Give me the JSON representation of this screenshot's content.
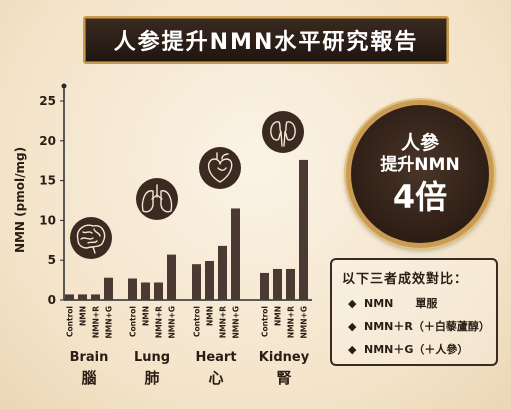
{
  "title": "人参提升NMN水平研究報告",
  "badge": {
    "line1": "人參",
    "line2": "提升NMN",
    "line3": "4倍"
  },
  "legend": {
    "title": "以下三者成效對比：",
    "items": [
      {
        "bullet": "◆",
        "text": "NMN　　單服"
      },
      {
        "bullet": "◆",
        "text": "NMN＋R（＋白藜蘆醇）"
      },
      {
        "bullet": "◆",
        "text": "NMN＋G（＋人參）"
      }
    ]
  },
  "colors": {
    "bar": "#4b3a33",
    "axis": "#2a2a2a",
    "banner": "#2b1c14",
    "gold": "#c99b54"
  },
  "chart_data": {
    "type": "bar",
    "ylabel": "NMN (pmol/mg)",
    "ylim": [
      0,
      27
    ],
    "yticks": [
      0,
      5,
      10,
      15,
      20,
      25
    ],
    "bar_labels": [
      "Control",
      "NMN",
      "NMN+R",
      "NMN+G"
    ],
    "groups": [
      {
        "name": "Brain",
        "name_zh": "腦",
        "icon": "brain-icon",
        "values": [
          0.7,
          0.7,
          0.7,
          2.8
        ]
      },
      {
        "name": "Lung",
        "name_zh": "肺",
        "icon": "lungs-icon",
        "values": [
          2.7,
          2.2,
          2.2,
          5.7
        ]
      },
      {
        "name": "Heart",
        "name_zh": "心",
        "icon": "heart-icon",
        "values": [
          4.5,
          4.9,
          6.8,
          11.5
        ]
      },
      {
        "name": "Kidney",
        "name_zh": "腎",
        "icon": "kidneys-icon",
        "values": [
          3.4,
          3.9,
          3.9,
          17.6
        ]
      }
    ]
  }
}
